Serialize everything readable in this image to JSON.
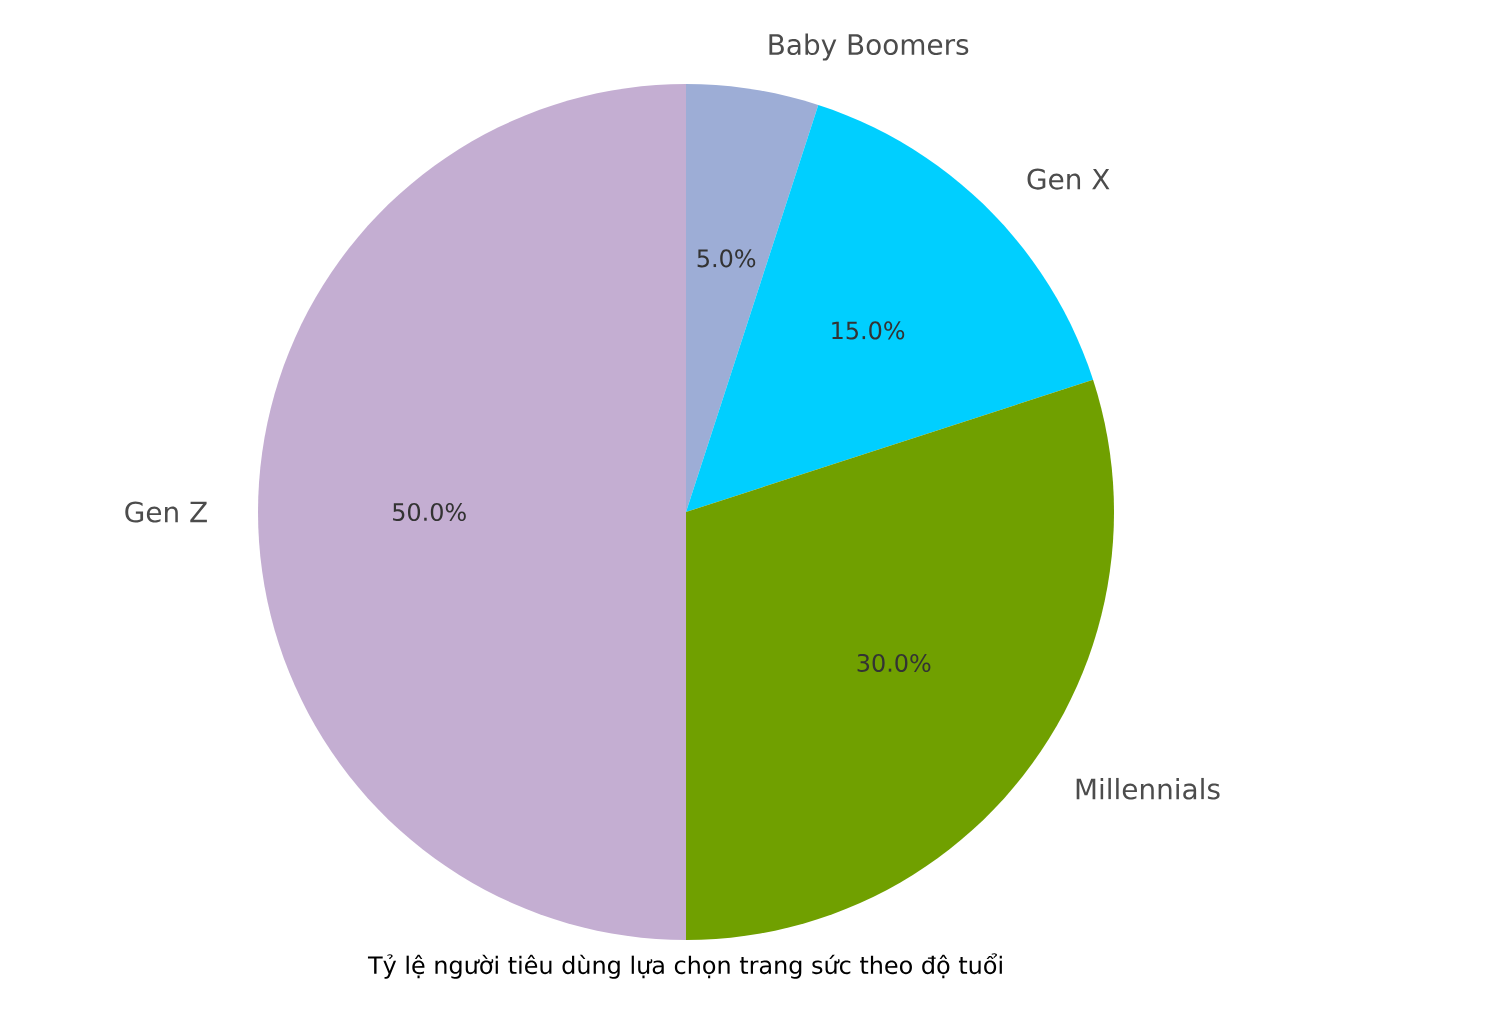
{
  "chart_data": {
    "type": "pie",
    "title": "Tỷ lệ người tiêu dùng lựa chọn trang sức theo độ tuổi",
    "categories": [
      "Baby Boomers",
      "Gen X",
      "Millennials",
      "Gen Z"
    ],
    "values": [
      5,
      15,
      30,
      50
    ],
    "value_labels": [
      "5.0%",
      "15.0%",
      "30.0%",
      "50.0%"
    ],
    "colors": [
      "#9dadd6",
      "#00cfff",
      "#70a000",
      "#c4aed2"
    ]
  }
}
